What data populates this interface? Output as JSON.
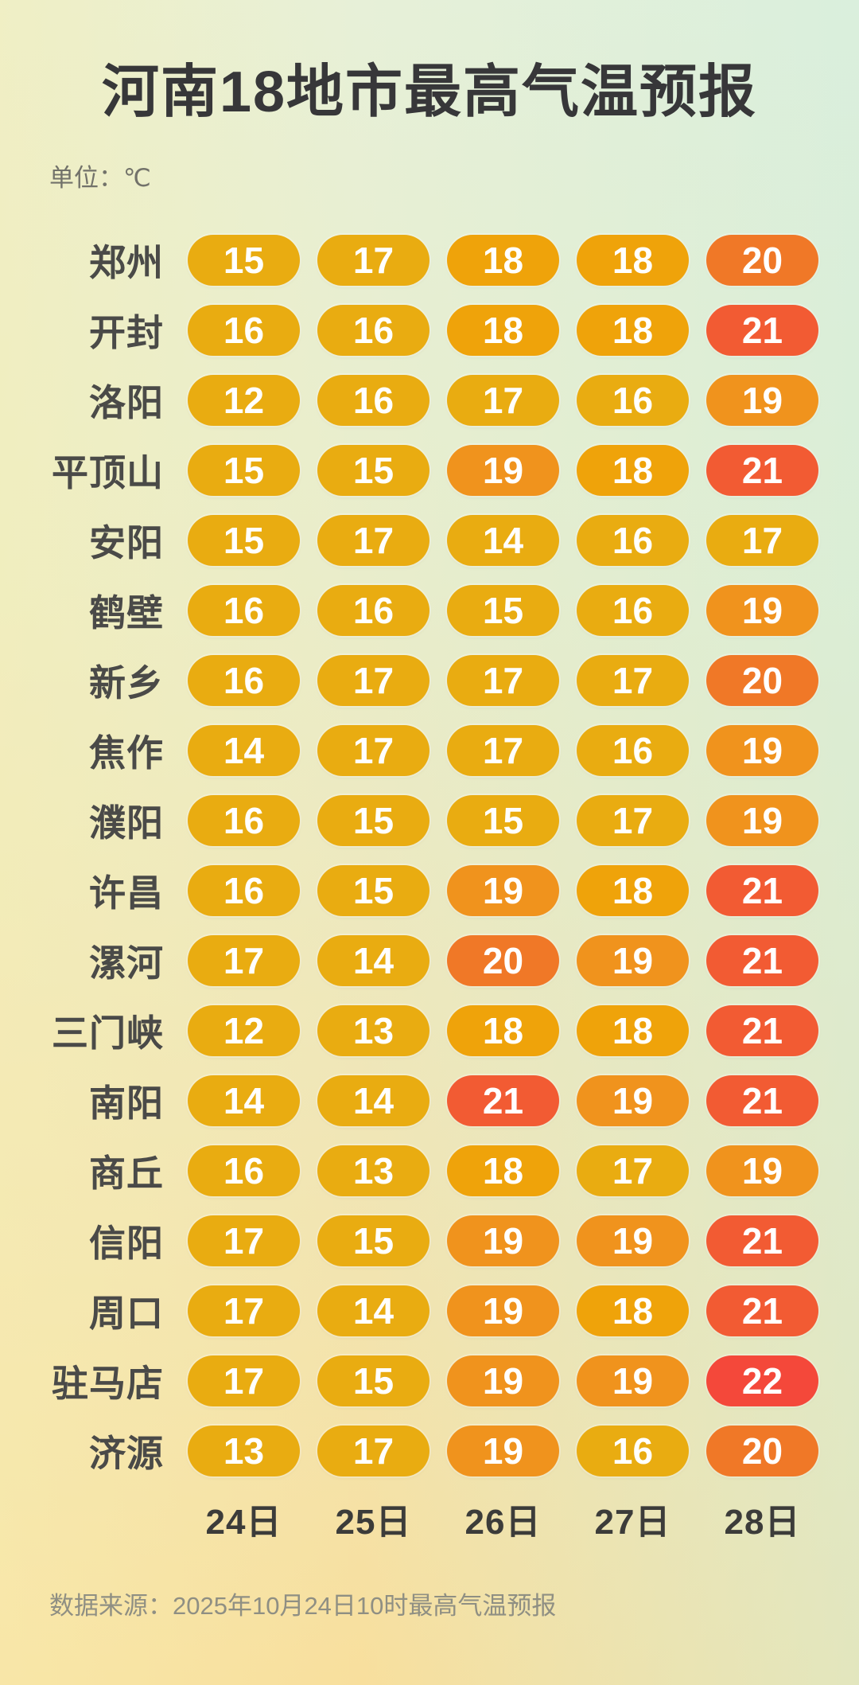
{
  "title": "河南18地市最高气温预报",
  "unit_label": "单位：℃",
  "source_note": "数据来源：2025年10月24日10时最高气温预报",
  "colors": {
    "background_top": "#DDF0E3",
    "background_bottom": "#F8DF9D",
    "title_text": "#373739",
    "city_text": "#4a4a48",
    "unit_text": "#72726a",
    "date_text": "#3c3c3a",
    "source_text": "#8f8f83",
    "pill_text": "#ffffff"
  },
  "chart_data": {
    "type": "table",
    "title": "河南18地市最高气温预报",
    "unit": "℃",
    "columns": [
      "24日",
      "25日",
      "26日",
      "27日",
      "28日"
    ],
    "rows": [
      {
        "city": "郑州",
        "values": [
          15,
          17,
          18,
          18,
          20
        ]
      },
      {
        "city": "开封",
        "values": [
          16,
          16,
          18,
          18,
          21
        ]
      },
      {
        "city": "洛阳",
        "values": [
          12,
          16,
          17,
          16,
          19
        ]
      },
      {
        "city": "平顶山",
        "values": [
          15,
          15,
          19,
          18,
          21
        ]
      },
      {
        "city": "安阳",
        "values": [
          15,
          17,
          14,
          16,
          17
        ]
      },
      {
        "city": "鹤壁",
        "values": [
          16,
          16,
          15,
          16,
          19
        ]
      },
      {
        "city": "新乡",
        "values": [
          16,
          17,
          17,
          17,
          20
        ]
      },
      {
        "city": "焦作",
        "values": [
          14,
          17,
          17,
          16,
          19
        ]
      },
      {
        "city": "濮阳",
        "values": [
          16,
          15,
          15,
          17,
          19
        ]
      },
      {
        "city": "许昌",
        "values": [
          16,
          15,
          19,
          18,
          21
        ]
      },
      {
        "city": "漯河",
        "values": [
          17,
          14,
          20,
          19,
          21
        ]
      },
      {
        "city": "三门峡",
        "values": [
          12,
          13,
          18,
          18,
          21
        ]
      },
      {
        "city": "南阳",
        "values": [
          14,
          14,
          21,
          19,
          21
        ]
      },
      {
        "city": "商丘",
        "values": [
          16,
          13,
          18,
          17,
          19
        ]
      },
      {
        "city": "信阳",
        "values": [
          17,
          15,
          19,
          19,
          21
        ]
      },
      {
        "city": "周口",
        "values": [
          17,
          14,
          19,
          18,
          21
        ]
      },
      {
        "city": "驻马店",
        "values": [
          17,
          15,
          19,
          19,
          22
        ]
      },
      {
        "city": "济源",
        "values": [
          13,
          17,
          19,
          16,
          20
        ]
      }
    ],
    "color_scale": [
      {
        "max": 17,
        "color": "#E9AC11"
      },
      {
        "max": 18,
        "color": "#EFA30A"
      },
      {
        "max": 19,
        "color": "#F0931D"
      },
      {
        "max": 20,
        "color": "#F07827"
      },
      {
        "max": 21,
        "color": "#F25B33"
      },
      {
        "max": 99,
        "color": "#F4483A"
      }
    ],
    "legend_position": "none",
    "grid": false
  }
}
